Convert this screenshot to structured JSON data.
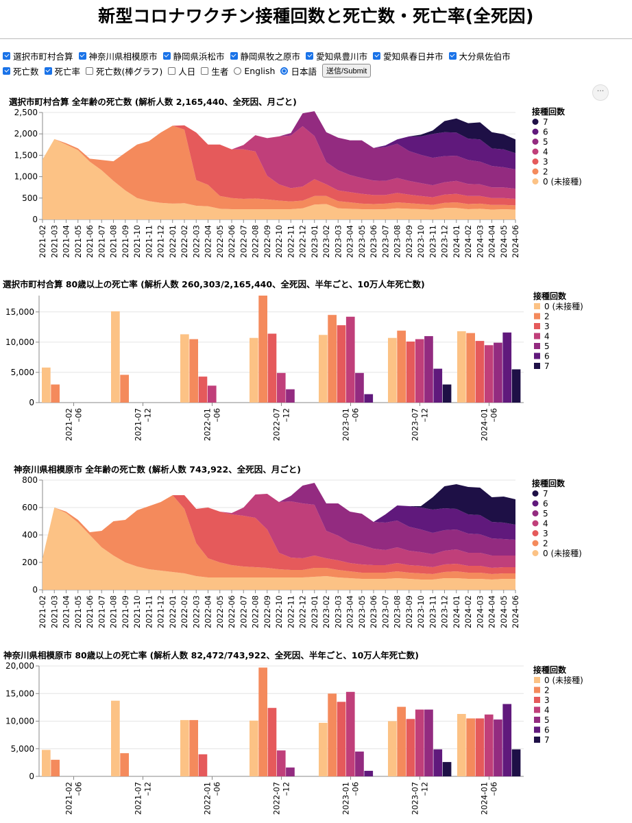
{
  "title": "新型コロナワクチン接種回数と死亡数・死亡率(全死因)",
  "controls": {
    "regions": [
      {
        "label": "選択市町村合算",
        "checked": true
      },
      {
        "label": "神奈川県相模原市",
        "checked": true
      },
      {
        "label": "静岡県浜松市",
        "checked": true
      },
      {
        "label": "静岡県牧之原市",
        "checked": true
      },
      {
        "label": "愛知県豊川市",
        "checked": true
      },
      {
        "label": "愛知県春日井市",
        "checked": true
      },
      {
        "label": "大分県佐伯市",
        "checked": true
      }
    ],
    "options": [
      {
        "label": "死亡数",
        "checked": true
      },
      {
        "label": "死亡率",
        "checked": true
      },
      {
        "label": "死亡数(棒グラフ)",
        "checked": false
      },
      {
        "label": "人日",
        "checked": false
      },
      {
        "label": "生者",
        "checked": false
      }
    ],
    "languages": [
      {
        "label": "English",
        "selected": false
      },
      {
        "label": "日本語",
        "selected": true
      }
    ],
    "submit_label": "送信/Submit",
    "menu_label": "···"
  },
  "colors": {
    "0": "#fcc285",
    "2": "#f48a5c",
    "3": "#e55a5b",
    "4": "#c03f7a",
    "5": "#932b80",
    "6": "#60197c",
    "7": "#1e1046"
  },
  "chart_data": [
    {
      "type": "area",
      "title": "選択市町村合算 全年齢の死亡数 (解析人数 2,165,440、全死因、月ごと)",
      "legend_title": "接種回数",
      "legend_order": [
        "7",
        "6",
        "5",
        "4",
        "3",
        "2",
        "0"
      ],
      "legend_labels": {
        "0": "0 (未接種)",
        "2": "2",
        "3": "3",
        "4": "4",
        "5": "5",
        "6": "6",
        "7": "7"
      },
      "x": [
        "2021-02",
        "2021-03",
        "2021-04",
        "2021-05",
        "2021-06",
        "2021-07",
        "2021-08",
        "2021-09",
        "2021-10",
        "2021-11",
        "2021-12",
        "2022-01",
        "2022-02",
        "2022-03",
        "2022-04",
        "2022-05",
        "2022-06",
        "2022-07",
        "2022-08",
        "2022-09",
        "2022-10",
        "2022-11",
        "2022-12",
        "2023-01",
        "2023-02",
        "2023-03",
        "2023-04",
        "2023-05",
        "2023-06",
        "2023-07",
        "2023-08",
        "2023-09",
        "2023-10",
        "2023-11",
        "2023-12",
        "2024-01",
        "2024-02",
        "2024-03",
        "2024-04",
        "2024-05",
        "2024-06"
      ],
      "yticks": [
        0,
        500,
        1000,
        1500,
        2000,
        2500
      ],
      "ylim": [
        0,
        2500
      ],
      "series": [
        {
          "name": "0",
          "values": [
            1400,
            1880,
            1750,
            1620,
            1350,
            1150,
            900,
            680,
            500,
            430,
            390,
            370,
            380,
            320,
            310,
            250,
            240,
            240,
            240,
            240,
            240,
            240,
            260,
            350,
            360,
            260,
            250,
            240,
            235,
            240,
            260,
            250,
            240,
            230,
            270,
            270,
            240,
            250,
            230,
            240,
            230
          ]
        },
        {
          "name": "2",
          "values": [
            0,
            0,
            30,
            40,
            70,
            240,
            460,
            880,
            1250,
            1400,
            1640,
            1820,
            1720,
            600,
            500,
            300,
            260,
            240,
            250,
            230,
            200,
            180,
            180,
            200,
            190,
            170,
            150,
            130,
            125,
            130,
            140,
            130,
            120,
            110,
            120,
            130,
            120,
            120,
            110,
            100,
            100
          ]
        },
        {
          "name": "3",
          "values": [
            0,
            0,
            0,
            0,
            0,
            0,
            0,
            0,
            0,
            0,
            0,
            0,
            100,
            1110,
            940,
            1200,
            1140,
            1160,
            1100,
            550,
            380,
            310,
            330,
            390,
            270,
            250,
            240,
            230,
            210,
            200,
            220,
            200,
            190,
            180,
            190,
            200,
            190,
            180,
            160,
            160,
            150
          ]
        },
        {
          "name": "4",
          "values": [
            0,
            0,
            0,
            0,
            0,
            0,
            0,
            0,
            0,
            0,
            0,
            0,
            0,
            0,
            0,
            0,
            0,
            100,
            380,
            880,
            1120,
            1230,
            1410,
            1010,
            520,
            470,
            400,
            370,
            340,
            330,
            350,
            320,
            300,
            280,
            290,
            300,
            280,
            270,
            250,
            250,
            240
          ]
        },
        {
          "name": "5",
          "values": [
            0,
            0,
            0,
            0,
            0,
            0,
            0,
            0,
            0,
            0,
            0,
            0,
            0,
            0,
            0,
            0,
            0,
            0,
            0,
            0,
            0,
            60,
            300,
            580,
            700,
            760,
            810,
            880,
            760,
            790,
            800,
            700,
            660,
            640,
            610,
            590,
            560,
            530,
            500,
            470,
            450
          ]
        },
        {
          "name": "6",
          "values": [
            0,
            0,
            0,
            0,
            0,
            0,
            0,
            0,
            0,
            0,
            0,
            0,
            0,
            0,
            0,
            0,
            0,
            0,
            0,
            0,
            0,
            0,
            0,
            0,
            0,
            0,
            0,
            0,
            0,
            40,
            100,
            340,
            430,
            560,
            560,
            540,
            500,
            520,
            410,
            420,
            380
          ]
        },
        {
          "name": "7",
          "values": [
            0,
            0,
            0,
            0,
            0,
            0,
            0,
            0,
            0,
            0,
            0,
            0,
            0,
            0,
            0,
            0,
            0,
            0,
            0,
            0,
            0,
            0,
            0,
            0,
            0,
            0,
            0,
            0,
            0,
            0,
            0,
            0,
            40,
            80,
            260,
            330,
            360,
            400,
            380,
            350,
            320
          ]
        }
      ]
    },
    {
      "type": "bar",
      "title": "選択市町村合算 80歳以上の死亡率 (解析人数 260,303/2,165,440、全死因、半年ごと、10万人年死亡数)",
      "legend_title": "接種回数",
      "legend_order": [
        "0",
        "2",
        "3",
        "4",
        "5",
        "6",
        "7"
      ],
      "legend_labels": {
        "0": "0 (未接種)",
        "2": "2",
        "3": "3",
        "4": "4",
        "5": "5",
        "6": "6",
        "7": "7"
      },
      "categories": [
        "2021-02 –06",
        "2021-07 –12",
        "2022-01 –06",
        "2022-07 –12",
        "2023-01 –06",
        "2023-07 –12",
        "2024-01 –06"
      ],
      "yticks": [
        0,
        5000,
        10000,
        15000
      ],
      "ylim": [
        0,
        17700
      ],
      "series": [
        {
          "name": "0",
          "values": [
            5800,
            15100,
            11300,
            10700,
            11200,
            10700,
            11800
          ]
        },
        {
          "name": "2",
          "values": [
            3000,
            4600,
            10500,
            17700,
            14500,
            11900,
            11500
          ]
        },
        {
          "name": "3",
          "values": [
            null,
            null,
            4300,
            11400,
            12800,
            10100,
            10200
          ]
        },
        {
          "name": "4",
          "values": [
            null,
            null,
            2800,
            4900,
            14200,
            10500,
            9500
          ]
        },
        {
          "name": "5",
          "values": [
            null,
            null,
            null,
            2200,
            4900,
            11000,
            9900
          ]
        },
        {
          "name": "6",
          "values": [
            null,
            null,
            null,
            null,
            1400,
            5600,
            11600
          ]
        },
        {
          "name": "7",
          "values": [
            null,
            null,
            null,
            null,
            null,
            3000,
            5500
          ]
        }
      ]
    },
    {
      "type": "area",
      "title": "神奈川県相模原市 全年齢の死亡数 (解析人数 743,922、全死因、月ごと)",
      "legend_title": "接種回数",
      "legend_order": [
        "7",
        "6",
        "5",
        "4",
        "3",
        "2",
        "0"
      ],
      "legend_labels": {
        "0": "0 (未接種)",
        "2": "2",
        "3": "3",
        "4": "4",
        "5": "5",
        "6": "6",
        "7": "7"
      },
      "x": [
        "2021-02",
        "2021-03",
        "2021-04",
        "2021-05",
        "2021-06",
        "2021-07",
        "2021-08",
        "2021-09",
        "2021-10",
        "2021-11",
        "2021-12",
        "2022-01",
        "2022-02",
        "2022-03",
        "2022-04",
        "2022-05",
        "2022-06",
        "2022-07",
        "2022-08",
        "2022-09",
        "2022-10",
        "2022-11",
        "2022-12",
        "2023-01",
        "2023-02",
        "2023-03",
        "2023-04",
        "2023-05",
        "2023-06",
        "2023-07",
        "2023-08",
        "2023-09",
        "2023-10",
        "2023-11",
        "2023-12",
        "2024-01",
        "2024-02",
        "2024-03",
        "2024-04",
        "2024-05",
        "2024-06"
      ],
      "yticks": [
        0,
        200,
        400,
        600,
        800
      ],
      "ylim": [
        0,
        800
      ],
      "series": [
        {
          "name": "0",
          "values": [
            230,
            600,
            560,
            490,
            400,
            310,
            250,
            200,
            170,
            150,
            140,
            130,
            120,
            100,
            90,
            90,
            90,
            90,
            90,
            90,
            90,
            90,
            90,
            95,
            100,
            90,
            85,
            80,
            80,
            80,
            85,
            80,
            75,
            75,
            85,
            85,
            80,
            80,
            75,
            80,
            80
          ]
        },
        {
          "name": "2",
          "values": [
            0,
            0,
            10,
            20,
            20,
            120,
            250,
            310,
            410,
            460,
            500,
            560,
            470,
            240,
            140,
            110,
            90,
            80,
            75,
            70,
            60,
            55,
            55,
            65,
            60,
            55,
            50,
            45,
            45,
            45,
            50,
            45,
            45,
            40,
            45,
            50,
            45,
            45,
            40,
            40,
            40
          ]
        },
        {
          "name": "3",
          "values": [
            0,
            0,
            0,
            0,
            0,
            0,
            0,
            0,
            0,
            0,
            0,
            0,
            100,
            250,
            370,
            370,
            370,
            370,
            360,
            280,
            120,
            90,
            85,
            90,
            70,
            70,
            60,
            60,
            55,
            55,
            60,
            55,
            55,
            50,
            55,
            55,
            50,
            50,
            45,
            45,
            45
          ]
        },
        {
          "name": "4",
          "values": [
            0,
            0,
            0,
            0,
            0,
            0,
            0,
            0,
            0,
            0,
            0,
            0,
            0,
            0,
            0,
            0,
            10,
            60,
            170,
            260,
            370,
            410,
            400,
            370,
            200,
            180,
            150,
            140,
            120,
            110,
            115,
            105,
            100,
            95,
            100,
            105,
            95,
            95,
            90,
            85,
            85
          ]
        },
        {
          "name": "5",
          "values": [
            0,
            0,
            0,
            0,
            0,
            0,
            0,
            0,
            0,
            0,
            0,
            0,
            0,
            0,
            0,
            0,
            0,
            0,
            0,
            0,
            0,
            40,
            130,
            160,
            200,
            235,
            225,
            230,
            195,
            200,
            195,
            175,
            165,
            155,
            150,
            145,
            140,
            135,
            125,
            120,
            115
          ]
        },
        {
          "name": "6",
          "values": [
            0,
            0,
            0,
            0,
            0,
            0,
            0,
            0,
            0,
            0,
            0,
            0,
            0,
            0,
            0,
            0,
            0,
            0,
            0,
            0,
            0,
            0,
            0,
            0,
            0,
            0,
            0,
            0,
            0,
            60,
            110,
            150,
            160,
            170,
            160,
            150,
            140,
            140,
            120,
            120,
            110
          ]
        },
        {
          "name": "7",
          "values": [
            0,
            0,
            0,
            0,
            0,
            0,
            0,
            0,
            0,
            0,
            0,
            0,
            0,
            0,
            0,
            0,
            0,
            0,
            0,
            0,
            0,
            0,
            0,
            0,
            0,
            0,
            0,
            0,
            0,
            0,
            0,
            0,
            10,
            90,
            160,
            180,
            200,
            200,
            180,
            190,
            185
          ]
        }
      ]
    },
    {
      "type": "bar",
      "title": "神奈川県相模原市 80歳以上の死亡率 (解析人数 82,472/743,922、全死因、半年ごと、10万人年死亡数)",
      "legend_title": "接種回数",
      "legend_order": [
        "0",
        "2",
        "3",
        "4",
        "5",
        "6",
        "7"
      ],
      "legend_labels": {
        "0": "0 (未接種)",
        "2": "2",
        "3": "3",
        "4": "4",
        "5": "5",
        "6": "6",
        "7": "7"
      },
      "categories": [
        "2021-02 –06",
        "2021-07 –12",
        "2022-01 –06",
        "2022-07 –12",
        "2023-01 –06",
        "2023-07 –12",
        "2024-01 –06"
      ],
      "yticks": [
        0,
        5000,
        10000,
        15000,
        20000
      ],
      "ylim": [
        0,
        20000
      ],
      "series": [
        {
          "name": "0",
          "values": [
            4800,
            13700,
            10200,
            10100,
            9700,
            10000,
            11300
          ]
        },
        {
          "name": "2",
          "values": [
            3000,
            4200,
            10200,
            19700,
            15000,
            12600,
            10500
          ]
        },
        {
          "name": "3",
          "values": [
            null,
            null,
            4000,
            12400,
            13500,
            10400,
            10500
          ]
        },
        {
          "name": "4",
          "values": [
            null,
            null,
            null,
            4700,
            15300,
            12100,
            11200
          ]
        },
        {
          "name": "5",
          "values": [
            null,
            null,
            null,
            1600,
            4500,
            12100,
            10300
          ]
        },
        {
          "name": "6",
          "values": [
            null,
            null,
            null,
            null,
            1000,
            4900,
            13100
          ]
        },
        {
          "name": "7",
          "values": [
            null,
            null,
            null,
            null,
            null,
            2600,
            4900
          ]
        }
      ]
    }
  ]
}
